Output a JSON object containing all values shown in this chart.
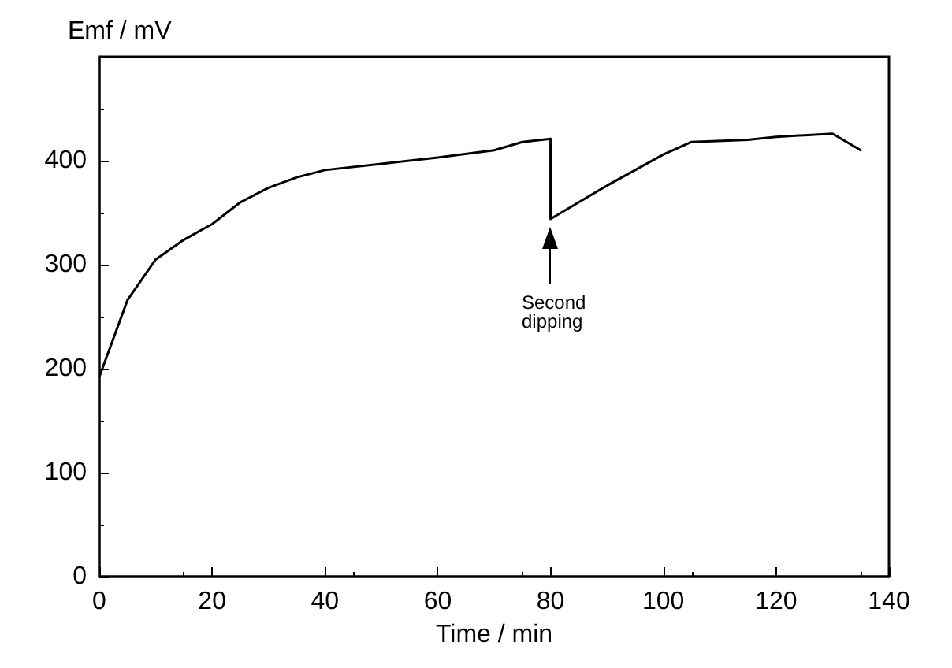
{
  "chart_data": {
    "type": "line",
    "xlabel": "Time / min",
    "ylabel": "Emf / mV",
    "xlim": [
      0,
      140
    ],
    "xticks": [
      0,
      20,
      40,
      60,
      80,
      100,
      120,
      140
    ],
    "ylim": [
      0,
      500
    ],
    "yticks": [
      0,
      100,
      200,
      300,
      400,
      {
        "value": 500,
        "label": null
      }
    ],
    "grid": false,
    "marker": "none",
    "line_style": "solid",
    "annotations": [
      "Second\ndipping"
    ],
    "series": [
      {
        "color": "#000000",
        "x": [
          0,
          5,
          10,
          15,
          20,
          25,
          30,
          35,
          40,
          50,
          60,
          70,
          75,
          80,
          80,
          85,
          90,
          100,
          105,
          115,
          120,
          130,
          135
        ],
        "values": [
          192,
          266,
          305,
          324,
          339,
          360,
          374,
          384,
          391,
          397,
          403,
          410,
          418,
          421,
          344,
          360,
          376,
          406,
          418,
          420,
          423,
          426,
          410
        ]
      }
    ]
  }
}
